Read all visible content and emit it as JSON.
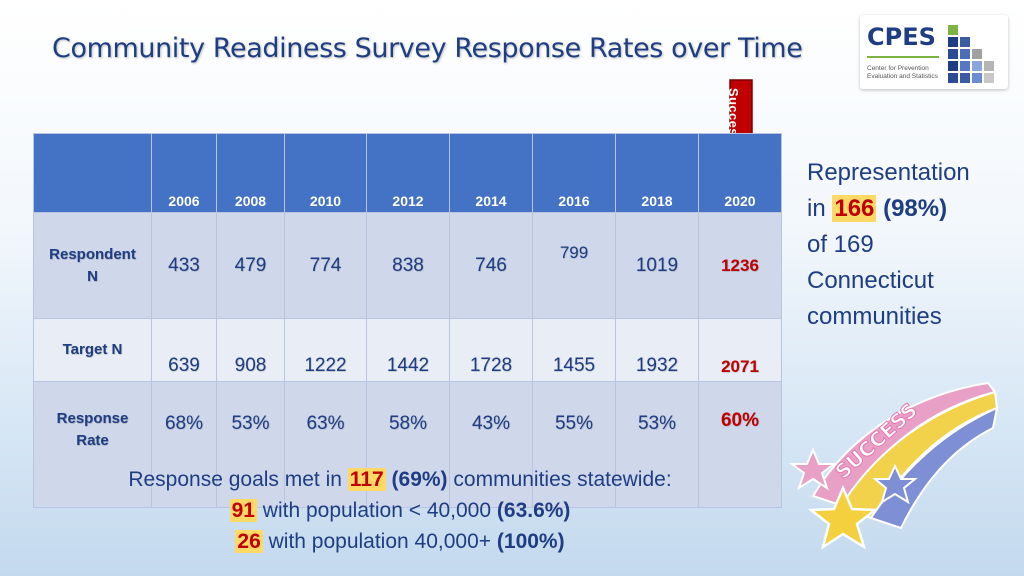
{
  "title": "Community Readiness Survey Response Rates over Time",
  "logo": {
    "name": "CPES",
    "subtitle": "Center for Prevention Evaluation and Statistics"
  },
  "arrow_label": "Success!",
  "table": {
    "years": [
      "2006",
      "2008",
      "2010",
      "2012",
      "2014",
      "2016",
      "2018",
      "2020"
    ],
    "rows": [
      {
        "label": "Respondent N",
        "values": [
          "433",
          "479",
          "774",
          "838",
          "746",
          "799",
          "1019",
          "1236"
        ]
      },
      {
        "label": "Target N",
        "values": [
          "639",
          "908",
          "1222",
          "1442",
          "1728",
          "1455",
          "1932",
          "2071"
        ]
      },
      {
        "label": "Response Rate",
        "values": [
          "68%",
          "53%",
          "63%",
          "58%",
          "43%",
          "55%",
          "53%",
          "60%"
        ]
      }
    ]
  },
  "representation": {
    "line1": "Representation",
    "in": "in",
    "count": "166",
    "pct": "(98%)",
    "line3": "of 169",
    "line4": "Connecticut",
    "line5": "communities"
  },
  "footer": {
    "l1_pre": "Response goals met in",
    "l1_num": "117",
    "l1_pct": "(69%)",
    "l1_post": "communities statewide:",
    "l2_num": "91",
    "l2_mid": "with population < 40,000",
    "l2_pct": "(63.6%)",
    "l3_num": "26",
    "l3_mid": "with population 40,000+",
    "l3_pct": "(100%)"
  },
  "shooting_star_text": "SUCCESS",
  "colors": {
    "title": "#1f3d82",
    "header": "#4472c4",
    "highlight": "#c00000",
    "highlight_bg": "#ffd966"
  }
}
